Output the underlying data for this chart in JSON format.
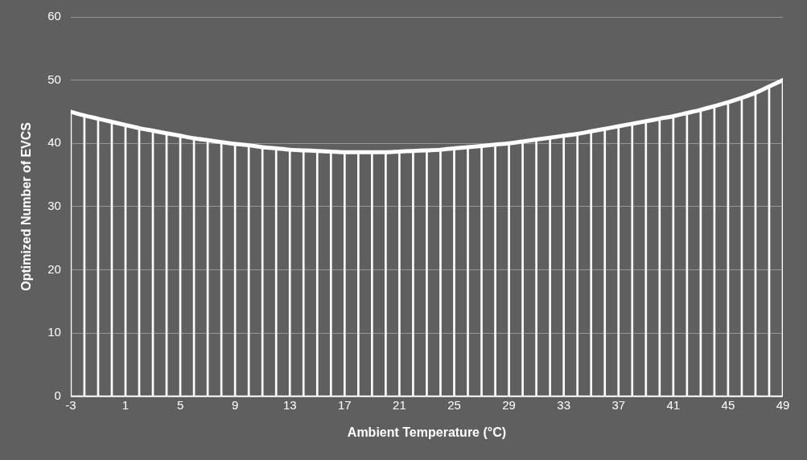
{
  "chart_data": {
    "type": "line",
    "xlabel": "Ambient Temperature (°C)",
    "ylabel": "Optimized Number of EVCS",
    "x": [
      -3,
      -2,
      -1,
      0,
      1,
      2,
      3,
      4,
      5,
      6,
      7,
      8,
      9,
      10,
      11,
      12,
      13,
      14,
      15,
      16,
      17,
      18,
      19,
      20,
      21,
      22,
      23,
      24,
      25,
      26,
      27,
      28,
      29,
      30,
      31,
      32,
      33,
      34,
      35,
      36,
      37,
      38,
      39,
      40,
      41,
      42,
      43,
      44,
      45,
      46,
      47,
      48,
      49
    ],
    "series": [
      {
        "type": "bar",
        "color": "#ffffff",
        "values": [
          45.0,
          44.4,
          43.9,
          43.4,
          42.9,
          42.4,
          42.0,
          41.6,
          41.2,
          40.8,
          40.5,
          40.2,
          39.9,
          39.7,
          39.4,
          39.2,
          39.0,
          38.9,
          38.8,
          38.7,
          38.6,
          38.6,
          38.6,
          38.6,
          38.7,
          38.8,
          38.9,
          39.0,
          39.2,
          39.4,
          39.6,
          39.8,
          40.0,
          40.3,
          40.6,
          40.9,
          41.2,
          41.5,
          41.9,
          42.3,
          42.7,
          43.1,
          43.5,
          43.9,
          44.3,
          44.8,
          45.3,
          45.9,
          46.5,
          47.2,
          48.0,
          49.0,
          50.0
        ]
      },
      {
        "color": "#ffffff",
        "values": [
          45.0,
          44.4,
          43.9,
          43.4,
          42.9,
          42.4,
          42.0,
          41.6,
          41.2,
          40.8,
          40.5,
          40.2,
          39.9,
          39.7,
          39.4,
          39.2,
          39.0,
          38.9,
          38.8,
          38.7,
          38.6,
          38.6,
          38.6,
          38.6,
          38.7,
          38.8,
          38.9,
          39.0,
          39.2,
          39.4,
          39.6,
          39.8,
          40.0,
          40.3,
          40.6,
          40.9,
          41.2,
          41.5,
          41.9,
          42.3,
          42.7,
          43.1,
          43.5,
          43.9,
          44.3,
          44.8,
          45.3,
          45.9,
          46.5,
          47.2,
          48.0,
          49.0,
          50.0
        ]
      }
    ],
    "xlim": [
      -3,
      49
    ],
    "xticks": [
      -3,
      1,
      5,
      9,
      13,
      17,
      21,
      25,
      29,
      33,
      37,
      41,
      45,
      49
    ],
    "ylim": [
      0,
      60
    ],
    "yticks": [
      0,
      10,
      20,
      30,
      40,
      50,
      60
    ],
    "grid": "y",
    "legend": false,
    "marker": "none",
    "line_style": "solid"
  }
}
